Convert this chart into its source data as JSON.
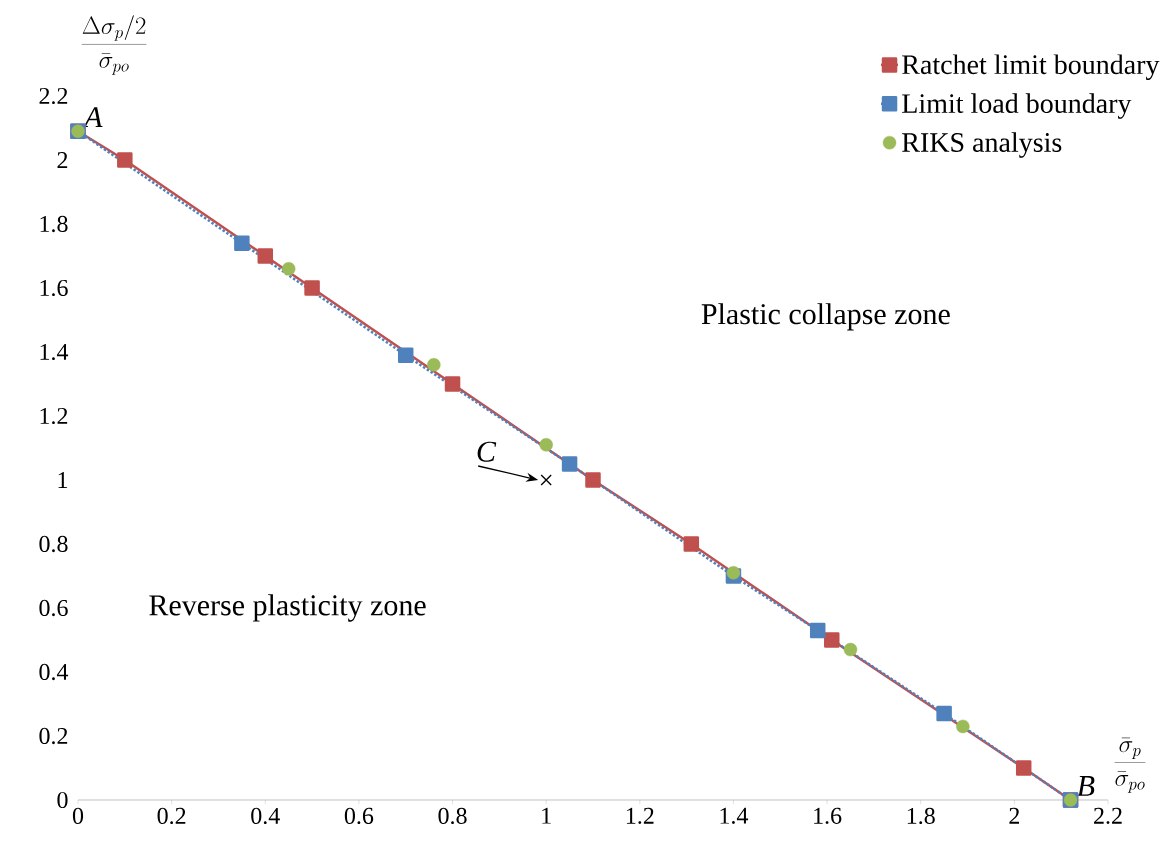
{
  "chart_data": {
    "type": "line",
    "xlabel": "\\frac{\\bar{\\sigma}_p}{\\bar{\\sigma}_{po}}",
    "ylabel": "\\frac{\\Delta\\sigma_p/2}{\\bar{\\sigma}_{po}}",
    "xlim": [
      0,
      2.2
    ],
    "ylim": [
      0,
      2.2
    ],
    "xticks": [
      0,
      0.2,
      0.4,
      0.6,
      0.8,
      1,
      1.2,
      1.4,
      1.6,
      1.8,
      2,
      2.2
    ],
    "yticks": [
      0,
      0.2,
      0.4,
      0.6,
      0.8,
      1,
      1.2,
      1.4,
      1.6,
      1.8,
      2,
      2.2
    ],
    "grid": false,
    "legend": "top right",
    "series": [
      {
        "name": "Ratchet limit boundary",
        "color": "#c0504d",
        "marker": "square",
        "line_style": "solid",
        "x": [
          0,
          0.1,
          0.4,
          0.5,
          0.8,
          1.1,
          1.31,
          1.61,
          2.02,
          2.12
        ],
        "values": [
          2.09,
          2.0,
          1.7,
          1.6,
          1.3,
          1.0,
          0.8,
          0.5,
          0.1,
          0
        ]
      },
      {
        "name": "Limit load boundary",
        "color": "#4f81bd",
        "marker": "square",
        "line_style": "dotted",
        "x": [
          0,
          0.35,
          0.7,
          1.05,
          1.4,
          1.58,
          1.85,
          2.12
        ],
        "values": [
          2.09,
          1.74,
          1.39,
          1.05,
          0.7,
          0.53,
          0.27,
          0
        ]
      },
      {
        "name": "RIKS analysis",
        "type": "scatter",
        "color": "#9bbb59",
        "marker": "circle",
        "x": [
          0,
          0.45,
          0.76,
          1.0,
          1.4,
          1.65,
          1.89,
          2.12
        ],
        "values": [
          2.09,
          1.66,
          1.36,
          1.11,
          0.71,
          0.47,
          0.23,
          0
        ]
      }
    ],
    "annotations": [
      {
        "text": "A",
        "x": 0,
        "y": 2.09
      },
      {
        "text": "B",
        "x": 2.12,
        "y": 0
      },
      {
        "text": "C",
        "x": 1.0,
        "y": 1.0
      },
      "Plastic collapse zone",
      "Reverse plasticity zone"
    ]
  }
}
